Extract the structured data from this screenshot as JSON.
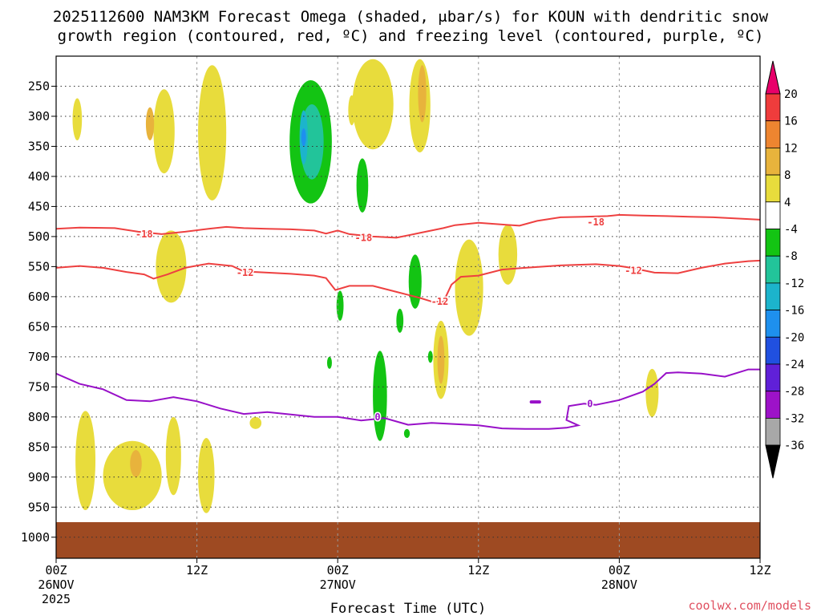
{
  "chart_data": {
    "type": "heatmap",
    "title_line1": "2025112600 NAM3KM Forecast Omega (shaded, μbar/s) for KOUN with dendritic snow",
    "title_line2": "growth region (contoured, red, ºC) and freezing level (contoured, purple, ºC)",
    "xlabel": "Forecast Time (UTC)",
    "x_ticks": [
      {
        "h": 0,
        "label": "00Z",
        "sub1": "26NOV",
        "sub2": "2025"
      },
      {
        "h": 12,
        "label": "12Z",
        "sub1": "",
        "sub2": ""
      },
      {
        "h": 24,
        "label": "00Z",
        "sub1": "27NOV",
        "sub2": ""
      },
      {
        "h": 36,
        "label": "12Z",
        "sub1": "",
        "sub2": ""
      },
      {
        "h": 48,
        "label": "00Z",
        "sub1": "28NOV",
        "sub2": ""
      },
      {
        "h": 60,
        "label": "12Z",
        "sub1": "",
        "sub2": ""
      }
    ],
    "xlim": [
      0,
      60
    ],
    "y_ticks": [
      "250",
      "300",
      "350",
      "400",
      "450",
      "500",
      "550",
      "600",
      "650",
      "700",
      "750",
      "800",
      "850",
      "900",
      "950",
      "1000"
    ],
    "ylim": [
      200,
      1035
    ],
    "grid": true,
    "colorbar": {
      "labels": [
        "20",
        "16",
        "12",
        "8",
        "4",
        "-4",
        "-8",
        "-12",
        "-16",
        "-20",
        "-24",
        "-28",
        "-32",
        "-36"
      ],
      "colors": [
        "#e8006a",
        "#ef3c3c",
        "#ee8530",
        "#e8b33c",
        "#e8dc3c",
        "#ffffff",
        "#13c413",
        "#22c49a",
        "#1cb4cc",
        "#1e90ee",
        "#2050e0",
        "#6020d8",
        "#9d12c8",
        "#a8a8a8",
        "#000000"
      ]
    },
    "shading": [
      {
        "band": "4 to 8",
        "color": "#e8dc3c",
        "areas": [
          {
            "t": 1.8,
            "p1": 270,
            "p2": 340,
            "w": 0.8
          },
          {
            "t": 9.2,
            "p1": 255,
            "p2": 395,
            "w": 1.8
          },
          {
            "t": 13.3,
            "p1": 215,
            "p2": 440,
            "w": 2.4
          },
          {
            "t": 9.8,
            "p1": 490,
            "p2": 610,
            "w": 2.6
          },
          {
            "t": 25.2,
            "p1": 265,
            "p2": 315,
            "w": 0.6
          },
          {
            "t": 27.0,
            "p1": 205,
            "p2": 355,
            "w": 3.5
          },
          {
            "t": 31.0,
            "p1": 205,
            "p2": 360,
            "w": 1.8
          },
          {
            "t": 35.2,
            "p1": 505,
            "p2": 665,
            "w": 2.4
          },
          {
            "t": 38.5,
            "p1": 480,
            "p2": 580,
            "w": 1.6
          },
          {
            "t": 32.8,
            "p1": 640,
            "p2": 770,
            "w": 1.3
          },
          {
            "t": 50.8,
            "p1": 720,
            "p2": 800,
            "w": 1.1
          },
          {
            "t": 2.5,
            "p1": 790,
            "p2": 955,
            "w": 1.7
          },
          {
            "t": 6.5,
            "p1": 840,
            "p2": 955,
            "w": 5.0
          },
          {
            "t": 10.0,
            "p1": 800,
            "p2": 930,
            "w": 1.3
          },
          {
            "t": 12.8,
            "p1": 835,
            "p2": 960,
            "w": 1.4
          },
          {
            "t": 17.0,
            "p1": 800,
            "p2": 820,
            "w": 1.0
          }
        ]
      },
      {
        "band": "8 to 12",
        "color": "#e8b33c",
        "areas": [
          {
            "t": 8.0,
            "p1": 285,
            "p2": 340,
            "w": 0.7
          },
          {
            "t": 31.2,
            "p1": 215,
            "p2": 310,
            "w": 0.7
          },
          {
            "t": 32.8,
            "p1": 665,
            "p2": 745,
            "w": 0.6
          },
          {
            "t": 6.8,
            "p1": 855,
            "p2": 900,
            "w": 1.0
          }
        ]
      },
      {
        "band": "-4 to -8",
        "color": "#13c413",
        "areas": [
          {
            "t": 21.7,
            "p1": 240,
            "p2": 445,
            "w": 3.6
          },
          {
            "t": 26.1,
            "p1": 370,
            "p2": 460,
            "w": 1.0
          },
          {
            "t": 30.6,
            "p1": 530,
            "p2": 620,
            "w": 1.1
          },
          {
            "t": 24.2,
            "p1": 590,
            "p2": 640,
            "w": 0.6
          },
          {
            "t": 23.3,
            "p1": 700,
            "p2": 720,
            "w": 0.3
          },
          {
            "t": 27.6,
            "p1": 690,
            "p2": 840,
            "w": 1.2
          },
          {
            "t": 29.3,
            "p1": 620,
            "p2": 660,
            "w": 0.6
          },
          {
            "t": 31.9,
            "p1": 690,
            "p2": 710,
            "w": 0.3
          },
          {
            "t": 29.9,
            "p1": 820,
            "p2": 835,
            "w": 0.5
          }
        ]
      },
      {
        "band": "-8 to -12",
        "color": "#22c49a",
        "areas": [
          {
            "t": 21.8,
            "p1": 280,
            "p2": 405,
            "w": 2.0
          }
        ]
      },
      {
        "band": "-12 to -16",
        "color": "#1cb4cc",
        "areas": [
          {
            "t": 21.1,
            "p1": 290,
            "p2": 380,
            "w": 0.7
          }
        ]
      },
      {
        "band": "-16 to -20",
        "color": "#1e90ee",
        "areas": [
          {
            "t": 21.1,
            "p1": 320,
            "p2": 350,
            "w": 0.3
          }
        ]
      }
    ],
    "contours": [
      {
        "label": "-18",
        "color": "#ee4040",
        "label_at": [
          [
            7.5,
            496
          ],
          [
            26.2,
            502
          ],
          [
            46.0,
            476
          ]
        ],
        "points": [
          [
            0,
            487
          ],
          [
            2,
            485
          ],
          [
            5,
            486
          ],
          [
            7,
            492
          ],
          [
            9,
            496
          ],
          [
            11,
            492
          ],
          [
            13,
            487
          ],
          [
            14.5,
            484
          ],
          [
            16,
            486
          ],
          [
            18,
            487
          ],
          [
            20,
            488
          ],
          [
            22,
            490
          ],
          [
            23,
            495
          ],
          [
            24,
            490
          ],
          [
            25,
            496
          ],
          [
            27,
            500
          ],
          [
            29,
            502
          ],
          [
            31,
            494
          ],
          [
            33,
            486
          ],
          [
            34,
            481
          ],
          [
            36,
            477
          ],
          [
            38,
            480
          ],
          [
            39.5,
            482
          ],
          [
            41,
            474
          ],
          [
            43,
            468
          ],
          [
            45,
            467
          ],
          [
            47,
            466
          ],
          [
            48,
            464
          ],
          [
            50,
            465
          ],
          [
            52,
            466
          ],
          [
            54,
            467
          ],
          [
            56,
            468
          ],
          [
            58,
            470
          ],
          [
            60,
            472
          ]
        ]
      },
      {
        "label": "-12",
        "color": "#ee4040",
        "label_at": [
          [
            16.1,
            560
          ],
          [
            32.7,
            608
          ],
          [
            49.2,
            557
          ]
        ],
        "points": [
          [
            0,
            552
          ],
          [
            2,
            549
          ],
          [
            4,
            552
          ],
          [
            6,
            559
          ],
          [
            7.5,
            563
          ],
          [
            8.3,
            570
          ],
          [
            9.5,
            563
          ],
          [
            11,
            552
          ],
          [
            13,
            545
          ],
          [
            15,
            549
          ],
          [
            16,
            558
          ],
          [
            18,
            560
          ],
          [
            20,
            562
          ],
          [
            22,
            565
          ],
          [
            23,
            569
          ],
          [
            23.8,
            589
          ],
          [
            25,
            582
          ],
          [
            27,
            582
          ],
          [
            29,
            592
          ],
          [
            31,
            602
          ],
          [
            32,
            608
          ],
          [
            33,
            609
          ],
          [
            33.7,
            580
          ],
          [
            34.5,
            567
          ],
          [
            36,
            565
          ],
          [
            38,
            555
          ],
          [
            40,
            552
          ],
          [
            43,
            548
          ],
          [
            46,
            546
          ],
          [
            48,
            549
          ],
          [
            49,
            552
          ],
          [
            51,
            560
          ],
          [
            53,
            561
          ],
          [
            55,
            552
          ],
          [
            57,
            545
          ],
          [
            59,
            541
          ],
          [
            60,
            540
          ]
        ]
      },
      {
        "label": "0",
        "color": "#9810c8",
        "label_at": [
          [
            27.4,
            800
          ],
          [
            45.5,
            778
          ]
        ],
        "points": [
          [
            0,
            728
          ],
          [
            2,
            745
          ],
          [
            4,
            754
          ],
          [
            6,
            772
          ],
          [
            8,
            774
          ],
          [
            10,
            767
          ],
          [
            12,
            774
          ],
          [
            14,
            786
          ],
          [
            16,
            795
          ],
          [
            18,
            792
          ],
          [
            20,
            796
          ],
          [
            22,
            800
          ],
          [
            24,
            800
          ],
          [
            26,
            806
          ],
          [
            28,
            802
          ],
          [
            30,
            813
          ],
          [
            32,
            810
          ],
          [
            34,
            812
          ],
          [
            36,
            814
          ],
          [
            38,
            819
          ],
          [
            40,
            820
          ],
          [
            42,
            820
          ],
          [
            43.5,
            818
          ],
          [
            44.5,
            814
          ],
          [
            43.5,
            805
          ],
          [
            43.7,
            782
          ],
          [
            45,
            778
          ],
          [
            46,
            780
          ],
          [
            48,
            772
          ],
          [
            50,
            758
          ],
          [
            51,
            745
          ],
          [
            52,
            727
          ],
          [
            53,
            726
          ],
          [
            55,
            728
          ],
          [
            57,
            733
          ],
          [
            59,
            721
          ],
          [
            60,
            721
          ]
        ]
      }
    ],
    "contour_fragments": [
      {
        "color": "#9810c8",
        "points": [
          [
            40.5,
            775
          ],
          [
            41.2,
            775
          ]
        ]
      }
    ],
    "surface": {
      "color": "#9e4a22",
      "top": 975
    },
    "credit": "coolwx.com/models"
  }
}
